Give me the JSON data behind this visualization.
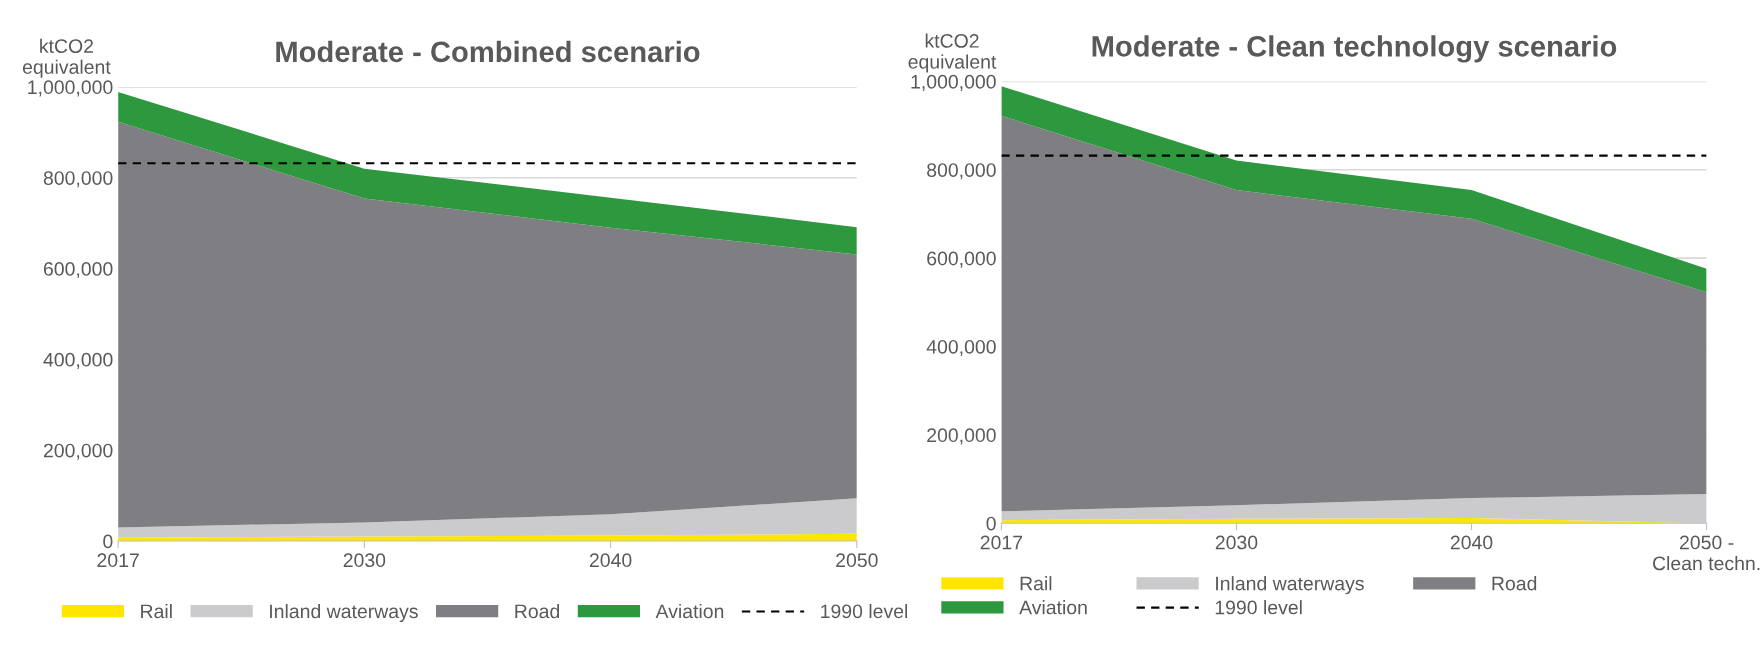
{
  "chart_data": [
    {
      "type": "area",
      "stacked": true,
      "title": "Moderate - Combined scenario",
      "ylabel": "ktCO2\nequivalent",
      "categories": [
        "2017",
        "2030",
        "2040",
        "2050"
      ],
      "series": [
        {
          "name": "Rail",
          "color": "#ffe600",
          "values": [
            7000,
            10000,
            12000,
            16000
          ]
        },
        {
          "name": "Inland waterways",
          "color": "#cbcbcd",
          "values": [
            23000,
            31000,
            47000,
            78000
          ]
        },
        {
          "name": "Road",
          "color": "#7f7e83",
          "values": [
            893000,
            713000,
            631000,
            537000
          ]
        },
        {
          "name": "Aviation",
          "color": "#2e983e",
          "values": [
            66000,
            66000,
            66000,
            60000
          ]
        }
      ],
      "ref_lines": [
        {
          "axis": "y",
          "value": 832000,
          "label": "1990 level",
          "color": "#000000",
          "line_style": "dashed"
        }
      ],
      "ylim": [
        0,
        1000000
      ],
      "yticks": [
        0,
        {
          "value": 200000,
          "label": "200,000"
        },
        {
          "value": 400000,
          "label": "400,000"
        },
        {
          "value": 600000,
          "label": "600,000"
        },
        {
          "value": 800000,
          "label": "800,000"
        },
        {
          "value": 1000000,
          "label": "1,000,000"
        }
      ],
      "grid": "y",
      "legend": "bottom"
    },
    {
      "type": "area",
      "stacked": true,
      "title": "Moderate - Clean technology scenario",
      "ylabel": "ktCO2\nequivalent",
      "categories": [
        "2017",
        "2030",
        "2040",
        "2050 -\nClean techn."
      ],
      "series": [
        {
          "name": "Rail",
          "color": "#ffe600",
          "values": [
            7000,
            10000,
            12000,
            0
          ]
        },
        {
          "name": "Inland waterways",
          "color": "#cbcbcd",
          "values": [
            20000,
            31000,
            45000,
            66000
          ]
        },
        {
          "name": "Road",
          "color": "#7f7e83",
          "values": [
            895000,
            713000,
            632000,
            457000
          ]
        },
        {
          "name": "Aviation",
          "color": "#2e983e",
          "values": [
            67000,
            67000,
            65000,
            53000
          ]
        }
      ],
      "ref_lines": [
        {
          "axis": "y",
          "value": 832000,
          "label": "1990 level",
          "color": "#000000",
          "line_style": "dashed"
        }
      ],
      "ylim": [
        0,
        1000000
      ],
      "yticks": [
        0,
        {
          "value": 200000,
          "label": "200,000"
        },
        {
          "value": 400000,
          "label": "400,000"
        },
        {
          "value": 600000,
          "label": "600,000"
        },
        {
          "value": 800000,
          "label": "800,000"
        },
        {
          "value": 1000000,
          "label": "1,000,000"
        }
      ],
      "grid": "y",
      "legend": "bottom"
    }
  ]
}
